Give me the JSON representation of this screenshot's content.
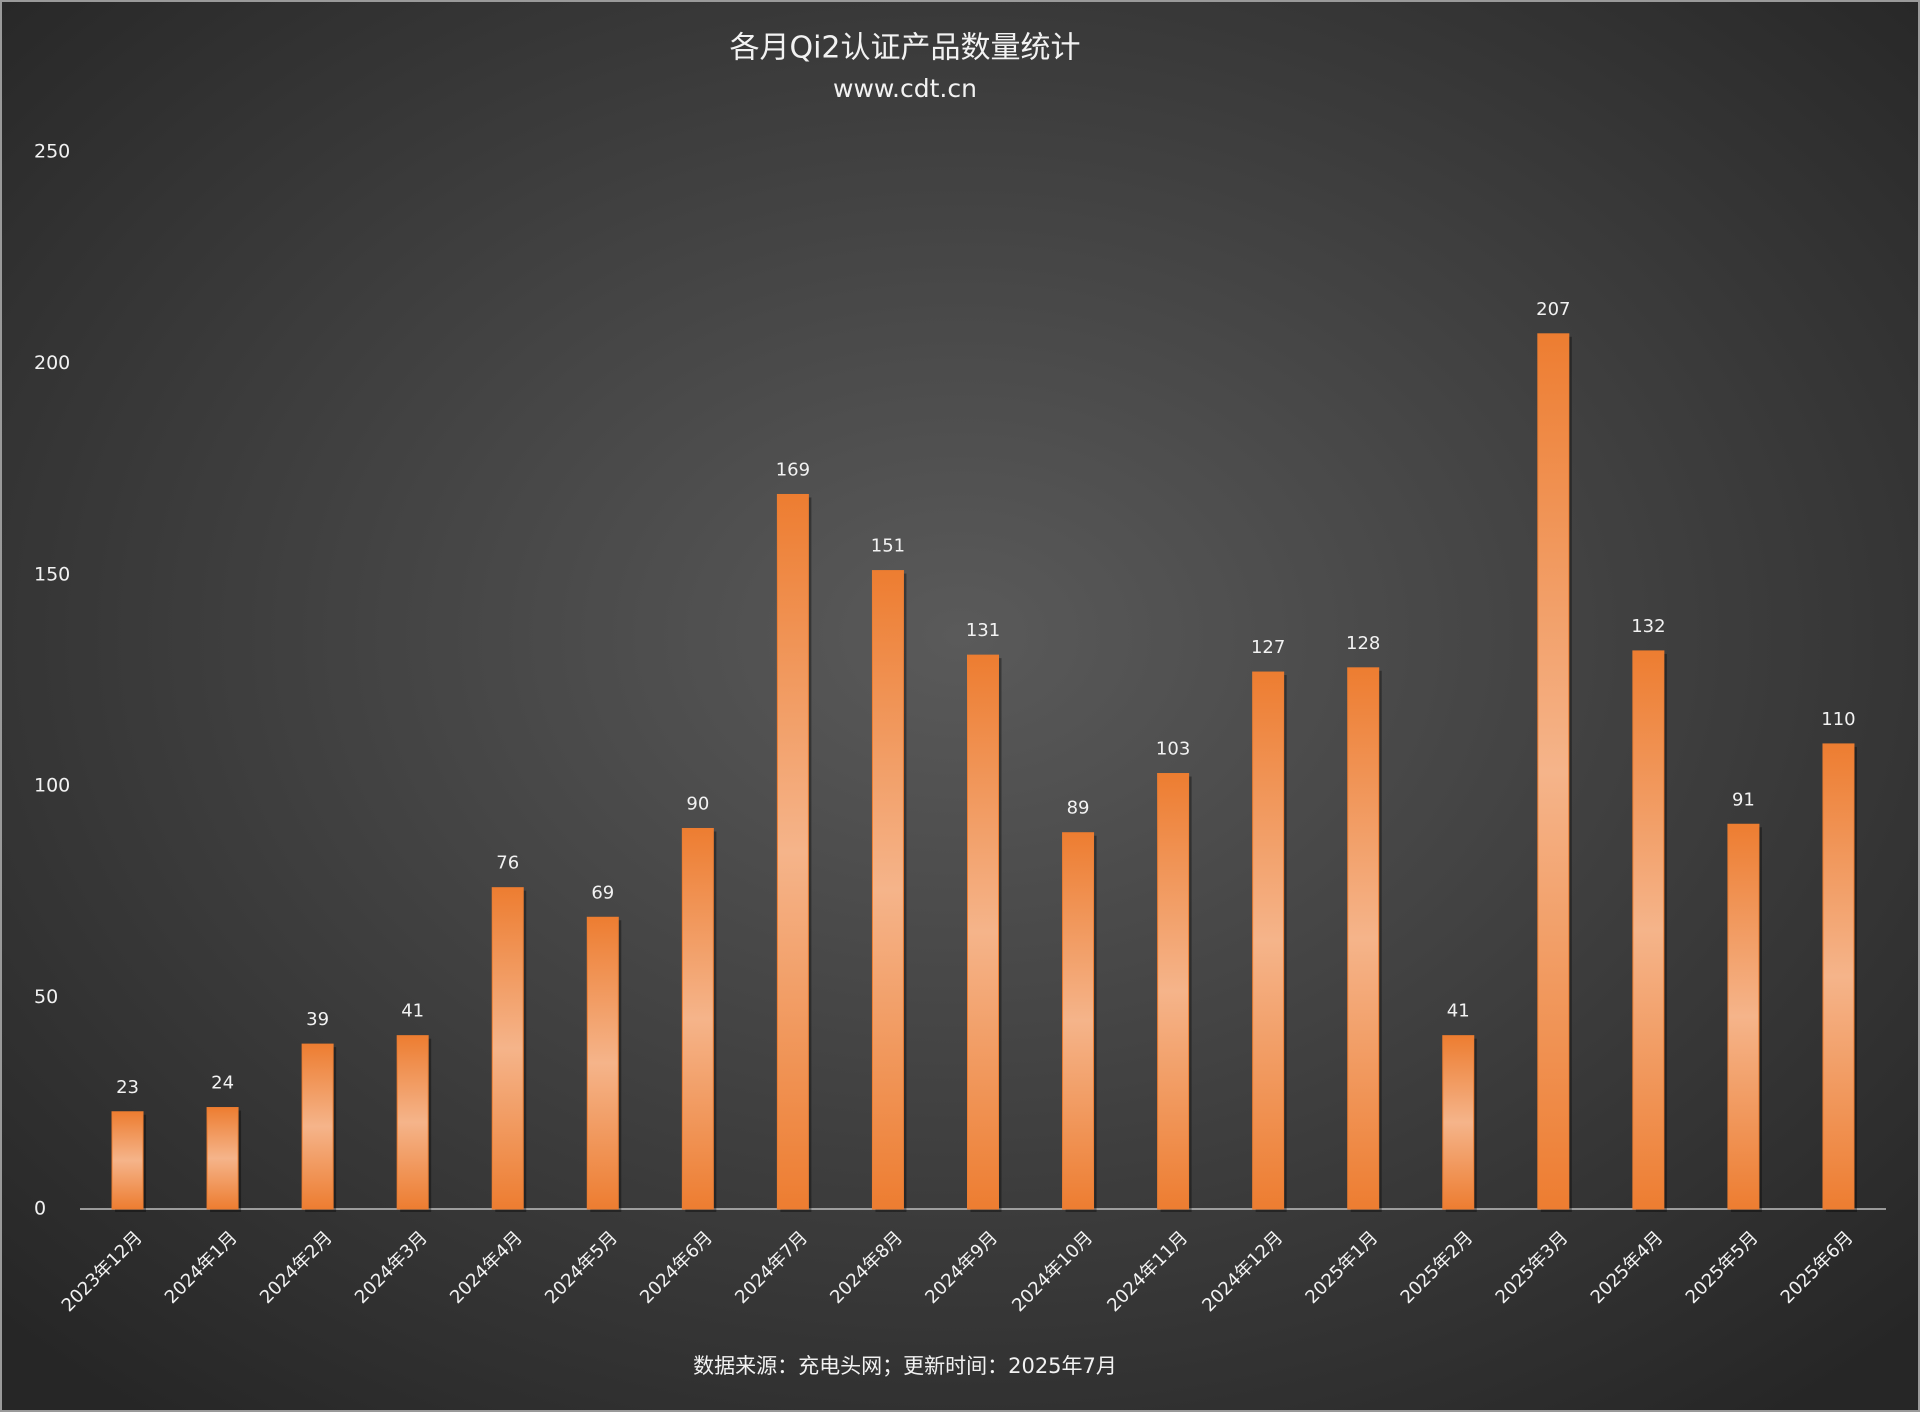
{
  "chart_data": {
    "type": "bar",
    "title": "各月Qi2认证产品数量统计",
    "subtitle": "www.cdt.cn",
    "note": "数据来源：充电头网；更新时间：2025年7月",
    "categories": [
      "2023年12月",
      "2024年1月",
      "2024年2月",
      "2024年3月",
      "2024年4月",
      "2024年5月",
      "2024年6月",
      "2024年7月",
      "2024年8月",
      "2024年9月",
      "2024年10月",
      "2024年11月",
      "2024年12月",
      "2025年1月",
      "2025年2月",
      "2025年3月",
      "2025年4月",
      "2025年5月",
      "2025年6月"
    ],
    "values": [
      23,
      24,
      39,
      41,
      76,
      69,
      90,
      169,
      151,
      131,
      89,
      103,
      127,
      128,
      41,
      207,
      132,
      91,
      110
    ],
    "color": "#ed7d31",
    "ylim": [
      0,
      250
    ],
    "yticks": [
      0,
      50,
      100,
      150,
      200,
      250
    ],
    "grid": false,
    "data_labels": true
  }
}
